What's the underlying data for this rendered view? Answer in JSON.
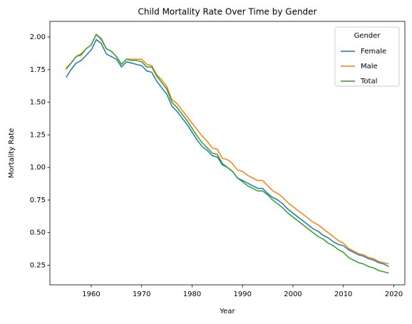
{
  "chart_data": {
    "type": "line",
    "title": "Child Mortality Rate Over Time by Gender",
    "xlabel": "Year",
    "ylabel": "Mortality Rate",
    "x": [
      1955,
      1956,
      1957,
      1958,
      1959,
      1960,
      1961,
      1962,
      1963,
      1964,
      1965,
      1966,
      1967,
      1968,
      1969,
      1970,
      1971,
      1972,
      1973,
      1974,
      1975,
      1976,
      1977,
      1978,
      1979,
      1980,
      1981,
      1982,
      1983,
      1984,
      1985,
      1986,
      1987,
      1988,
      1989,
      1990,
      1991,
      1992,
      1993,
      1994,
      1995,
      1996,
      1997,
      1998,
      1999,
      2000,
      2001,
      2002,
      2003,
      2004,
      2005,
      2006,
      2007,
      2008,
      2009,
      2010,
      2011,
      2012,
      2013,
      2014,
      2015,
      2016,
      2017,
      2018,
      2019
    ],
    "series": [
      {
        "name": "Female",
        "color": "#1f77b4",
        "values": [
          1.69,
          1.75,
          1.8,
          1.82,
          1.86,
          1.9,
          1.98,
          1.95,
          1.87,
          1.85,
          1.83,
          1.77,
          1.81,
          1.8,
          1.79,
          1.78,
          1.74,
          1.73,
          1.66,
          1.61,
          1.56,
          1.47,
          1.43,
          1.38,
          1.33,
          1.27,
          1.21,
          1.16,
          1.13,
          1.09,
          1.08,
          1.02,
          1.0,
          0.97,
          0.92,
          0.9,
          0.88,
          0.86,
          0.84,
          0.84,
          0.8,
          0.77,
          0.75,
          0.72,
          0.68,
          0.65,
          0.62,
          0.59,
          0.56,
          0.53,
          0.51,
          0.48,
          0.46,
          0.43,
          0.41,
          0.4,
          0.37,
          0.35,
          0.33,
          0.32,
          0.3,
          0.29,
          0.27,
          0.26,
          0.24
        ]
      },
      {
        "name": "Male",
        "color": "#ff7f0e",
        "values": [
          1.75,
          1.8,
          1.85,
          1.86,
          1.91,
          1.94,
          2.02,
          1.99,
          1.91,
          1.89,
          1.85,
          1.79,
          1.83,
          1.83,
          1.83,
          1.83,
          1.79,
          1.78,
          1.71,
          1.67,
          1.62,
          1.52,
          1.49,
          1.44,
          1.39,
          1.34,
          1.29,
          1.24,
          1.2,
          1.15,
          1.14,
          1.07,
          1.06,
          1.03,
          0.98,
          0.97,
          0.94,
          0.92,
          0.9,
          0.9,
          0.86,
          0.82,
          0.8,
          0.77,
          0.73,
          0.7,
          0.67,
          0.64,
          0.61,
          0.58,
          0.56,
          0.53,
          0.5,
          0.47,
          0.44,
          0.42,
          0.38,
          0.36,
          0.34,
          0.33,
          0.31,
          0.3,
          0.28,
          0.27,
          0.26
        ]
      },
      {
        "name": "Total",
        "color": "#2ca02c",
        "values": [
          1.76,
          1.8,
          1.85,
          1.87,
          1.91,
          1.94,
          2.02,
          1.98,
          1.91,
          1.89,
          1.85,
          1.79,
          1.83,
          1.82,
          1.82,
          1.81,
          1.77,
          1.77,
          1.7,
          1.65,
          1.6,
          1.5,
          1.46,
          1.41,
          1.36,
          1.3,
          1.24,
          1.19,
          1.15,
          1.11,
          1.1,
          1.03,
          1.0,
          0.97,
          0.92,
          0.89,
          0.86,
          0.84,
          0.82,
          0.82,
          0.79,
          0.75,
          0.72,
          0.69,
          0.65,
          0.62,
          0.59,
          0.56,
          0.53,
          0.5,
          0.47,
          0.45,
          0.42,
          0.4,
          0.37,
          0.35,
          0.31,
          0.29,
          0.27,
          0.26,
          0.24,
          0.23,
          0.21,
          0.2,
          0.19
        ]
      }
    ],
    "xlim": [
      1951.8,
      2022.2
    ],
    "xticks": [
      1960,
      1970,
      1980,
      1990,
      2000,
      2010,
      2020
    ],
    "ylim": [
      0.1,
      2.12
    ],
    "yticks": [
      {
        "value": 0.25,
        "label": "0.25"
      },
      {
        "value": 0.5,
        "label": "0.50"
      },
      {
        "value": 0.75,
        "label": "0.75"
      },
      {
        "value": 1,
        "label": "1.00"
      },
      {
        "value": 1.25,
        "label": "1.25"
      },
      {
        "value": 1.5,
        "label": "1.50"
      },
      {
        "value": 1.75,
        "label": "1.75"
      },
      {
        "value": 2,
        "label": "2.00"
      }
    ],
    "grid": false,
    "legend": {
      "title": "Gender",
      "loc": "upper right"
    }
  }
}
